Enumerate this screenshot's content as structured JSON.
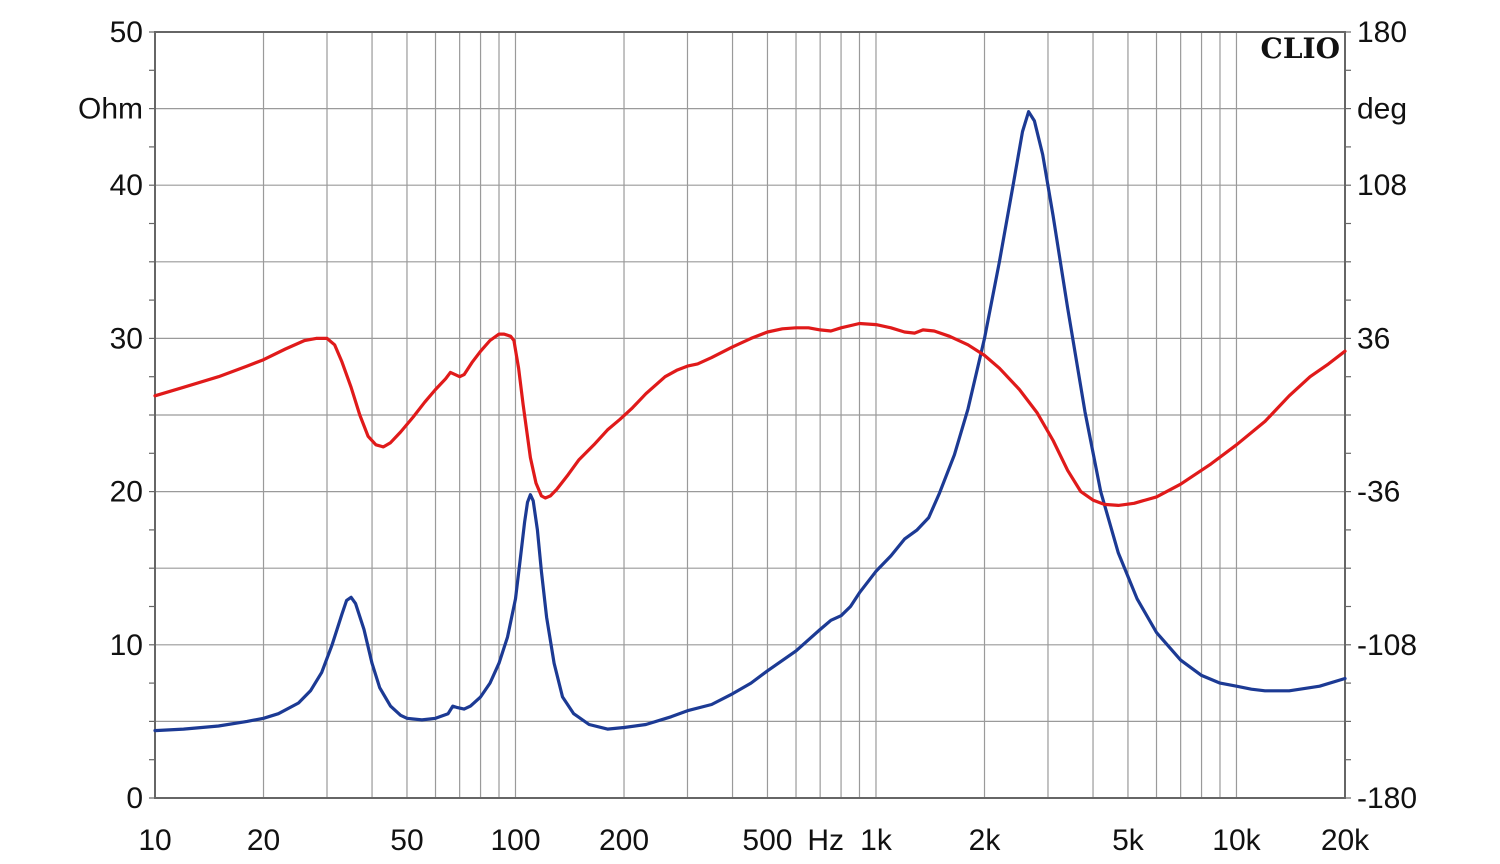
{
  "chart_data": {
    "type": "line",
    "brand": "CLIO",
    "x_axis": {
      "unit_label": "Hz",
      "scale": "log",
      "range": [
        10,
        20000
      ],
      "ticks": [
        {
          "value": 10,
          "label": "10"
        },
        {
          "value": 20,
          "label": "20"
        },
        {
          "value": 50,
          "label": "50"
        },
        {
          "value": 100,
          "label": "100"
        },
        {
          "value": 200,
          "label": "200"
        },
        {
          "value": 500,
          "label": "500"
        },
        {
          "value": 1000,
          "label": "1k"
        },
        {
          "value": 2000,
          "label": "2k"
        },
        {
          "value": 5000,
          "label": "5k"
        },
        {
          "value": 10000,
          "label": "10k"
        },
        {
          "value": 20000,
          "label": "20k"
        }
      ]
    },
    "y_left": {
      "unit_label": "Ohm",
      "range": [
        0,
        50
      ],
      "ticks": [
        {
          "value": 0,
          "label": "0"
        },
        {
          "value": 10,
          "label": "10"
        },
        {
          "value": 20,
          "label": "20"
        },
        {
          "value": 30,
          "label": "30"
        },
        {
          "value": 40,
          "label": "40"
        },
        {
          "value": 50,
          "label": "50"
        }
      ]
    },
    "y_right": {
      "unit_label": "deg",
      "range": [
        -180,
        180
      ],
      "ticks": [
        {
          "value": -180,
          "label": "-180"
        },
        {
          "value": -108,
          "label": "-108"
        },
        {
          "value": -36,
          "label": "-36"
        },
        {
          "value": 36,
          "label": "36"
        },
        {
          "value": 108,
          "label": "108"
        },
        {
          "value": 180,
          "label": "180"
        }
      ]
    },
    "grid": true,
    "series": [
      {
        "color": "#1c3a94",
        "axis": "left",
        "points": [
          [
            10,
            4.4
          ],
          [
            12,
            4.5
          ],
          [
            15,
            4.7
          ],
          [
            18,
            5.0
          ],
          [
            20,
            5.2
          ],
          [
            22,
            5.5
          ],
          [
            25,
            6.2
          ],
          [
            27,
            7.0
          ],
          [
            29,
            8.2
          ],
          [
            31,
            10.0
          ],
          [
            33,
            12.0
          ],
          [
            34,
            12.9
          ],
          [
            35,
            13.1
          ],
          [
            36,
            12.7
          ],
          [
            38,
            11.0
          ],
          [
            40,
            8.8
          ],
          [
            42,
            7.2
          ],
          [
            45,
            6.0
          ],
          [
            48,
            5.4
          ],
          [
            50,
            5.2
          ],
          [
            55,
            5.1
          ],
          [
            60,
            5.2
          ],
          [
            65,
            5.5
          ],
          [
            67,
            6.0
          ],
          [
            69,
            5.9
          ],
          [
            72,
            5.8
          ],
          [
            75,
            6.0
          ],
          [
            80,
            6.6
          ],
          [
            85,
            7.5
          ],
          [
            90,
            8.8
          ],
          [
            95,
            10.5
          ],
          [
            100,
            13.0
          ],
          [
            103,
            15.5
          ],
          [
            106,
            18.0
          ],
          [
            108,
            19.3
          ],
          [
            110,
            19.8
          ],
          [
            112,
            19.4
          ],
          [
            115,
            17.5
          ],
          [
            118,
            14.8
          ],
          [
            122,
            11.8
          ],
          [
            128,
            8.8
          ],
          [
            135,
            6.6
          ],
          [
            145,
            5.5
          ],
          [
            160,
            4.8
          ],
          [
            180,
            4.5
          ],
          [
            200,
            4.6
          ],
          [
            230,
            4.8
          ],
          [
            270,
            5.3
          ],
          [
            300,
            5.7
          ],
          [
            350,
            6.1
          ],
          [
            400,
            6.8
          ],
          [
            450,
            7.5
          ],
          [
            500,
            8.3
          ],
          [
            600,
            9.6
          ],
          [
            700,
            11.0
          ],
          [
            750,
            11.6
          ],
          [
            800,
            11.9
          ],
          [
            850,
            12.5
          ],
          [
            900,
            13.4
          ],
          [
            1000,
            14.8
          ],
          [
            1100,
            15.8
          ],
          [
            1200,
            16.9
          ],
          [
            1300,
            17.5
          ],
          [
            1400,
            18.3
          ],
          [
            1500,
            19.9
          ],
          [
            1650,
            22.4
          ],
          [
            1800,
            25.4
          ],
          [
            2000,
            30.0
          ],
          [
            2200,
            35.0
          ],
          [
            2400,
            40.0
          ],
          [
            2550,
            43.5
          ],
          [
            2650,
            44.8
          ],
          [
            2750,
            44.2
          ],
          [
            2900,
            42.0
          ],
          [
            3100,
            38.0
          ],
          [
            3400,
            32.0
          ],
          [
            3800,
            25.2
          ],
          [
            4200,
            20.0
          ],
          [
            4700,
            16.0
          ],
          [
            5300,
            13.0
          ],
          [
            6000,
            10.8
          ],
          [
            7000,
            9.0
          ],
          [
            8000,
            8.0
          ],
          [
            9000,
            7.5
          ],
          [
            10000,
            7.3
          ],
          [
            11000,
            7.1
          ],
          [
            12000,
            7.0
          ],
          [
            13000,
            7.0
          ],
          [
            14000,
            7.0
          ],
          [
            15000,
            7.1
          ],
          [
            17000,
            7.3
          ],
          [
            20000,
            7.8
          ]
        ]
      },
      {
        "color": "#e01a1a",
        "axis": "right",
        "points": [
          [
            10,
            9
          ],
          [
            12,
            13
          ],
          [
            15,
            18
          ],
          [
            18,
            23
          ],
          [
            20,
            26
          ],
          [
            23,
            31
          ],
          [
            26,
            35
          ],
          [
            28,
            36
          ],
          [
            30,
            36
          ],
          [
            31.5,
            33
          ],
          [
            33,
            25
          ],
          [
            35,
            13
          ],
          [
            37,
            0
          ],
          [
            39,
            -10
          ],
          [
            41,
            -14
          ],
          [
            43,
            -15
          ],
          [
            45,
            -13
          ],
          [
            48,
            -8
          ],
          [
            52,
            -1
          ],
          [
            56,
            6
          ],
          [
            60,
            12
          ],
          [
            64,
            17
          ],
          [
            66,
            20
          ],
          [
            68,
            19
          ],
          [
            70,
            18
          ],
          [
            72,
            19
          ],
          [
            76,
            25
          ],
          [
            80,
            30
          ],
          [
            85,
            35
          ],
          [
            90,
            38
          ],
          [
            93,
            38
          ],
          [
            97,
            37
          ],
          [
            99,
            35
          ],
          [
            102,
            22
          ],
          [
            105,
            5
          ],
          [
            110,
            -20
          ],
          [
            114,
            -32
          ],
          [
            118,
            -38
          ],
          [
            121,
            -39
          ],
          [
            125,
            -38
          ],
          [
            130,
            -35
          ],
          [
            140,
            -28
          ],
          [
            150,
            -21
          ],
          [
            165,
            -14
          ],
          [
            180,
            -7
          ],
          [
            195,
            -2
          ],
          [
            210,
            3
          ],
          [
            230,
            10
          ],
          [
            260,
            18
          ],
          [
            280,
            21
          ],
          [
            300,
            23
          ],
          [
            320,
            24
          ],
          [
            350,
            27
          ],
          [
            400,
            32
          ],
          [
            450,
            36
          ],
          [
            500,
            39
          ],
          [
            550,
            40.5
          ],
          [
            600,
            41
          ],
          [
            650,
            41
          ],
          [
            700,
            40
          ],
          [
            750,
            39.5
          ],
          [
            800,
            41
          ],
          [
            900,
            43
          ],
          [
            1000,
            42.5
          ],
          [
            1100,
            41
          ],
          [
            1200,
            39
          ],
          [
            1280,
            38.5
          ],
          [
            1350,
            40
          ],
          [
            1450,
            39.5
          ],
          [
            1600,
            37
          ],
          [
            1800,
            33
          ],
          [
            2000,
            28
          ],
          [
            2200,
            22
          ],
          [
            2500,
            12
          ],
          [
            2800,
            1
          ],
          [
            3100,
            -12
          ],
          [
            3400,
            -26
          ],
          [
            3700,
            -36
          ],
          [
            4000,
            -40
          ],
          [
            4300,
            -42
          ],
          [
            4700,
            -42.5
          ],
          [
            5200,
            -41.5
          ],
          [
            6000,
            -38.5
          ],
          [
            7000,
            -32.5
          ],
          [
            8500,
            -23
          ],
          [
            10000,
            -14
          ],
          [
            12000,
            -3
          ],
          [
            14000,
            9
          ],
          [
            16000,
            18
          ],
          [
            18000,
            24
          ],
          [
            20000,
            30
          ]
        ]
      }
    ]
  }
}
